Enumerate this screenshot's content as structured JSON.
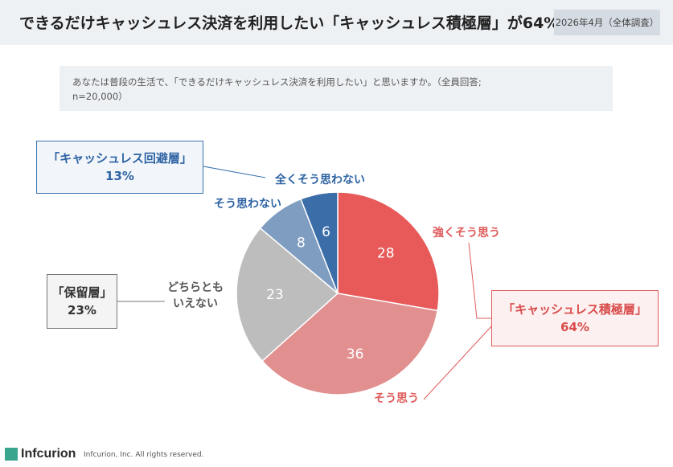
{
  "header": {
    "title": "できるだけキャッシュレス決済を利用したい「キャッシュレス積極層」が64%",
    "badge": "2026年4月（全体調査）"
  },
  "question": {
    "line1": "あなたは普段の生活で、「できるだけキャッシュレス決済を利用したい」と思いますか。（全員回答;",
    "line2": "n=20,000）"
  },
  "groups": {
    "avoid": {
      "label": "「キャッシュレス回避層」",
      "percent": "13%"
    },
    "hold": {
      "label": "「保留層」",
      "percent": "23%"
    },
    "active": {
      "label": "「キャッシュレス積極層」",
      "percent": "64%"
    }
  },
  "chart_data": {
    "type": "pie",
    "slices": [
      {
        "label": "強くそう思う",
        "value": 28,
        "color": "#e85a5a",
        "label_color": "#e05b5b"
      },
      {
        "label": "そう思う",
        "value": 36,
        "color": "#e28f8f",
        "label_color": "#e05b5b"
      },
      {
        "label": "どちらとも\nいえない",
        "value": 23,
        "color": "#bdbdbd",
        "label_color": "#555555"
      },
      {
        "label": "そう思わない",
        "value": 8,
        "color": "#7f9dc0",
        "label_color": "#2f64a3"
      },
      {
        "label": "全くそう思わない",
        "value": 6,
        "color": "#3b6ea8",
        "label_color": "#2f64a3"
      }
    ]
  },
  "footer": {
    "logo": "Infcurion",
    "copyright": "Infcurion, Inc.  All rights reserved."
  }
}
